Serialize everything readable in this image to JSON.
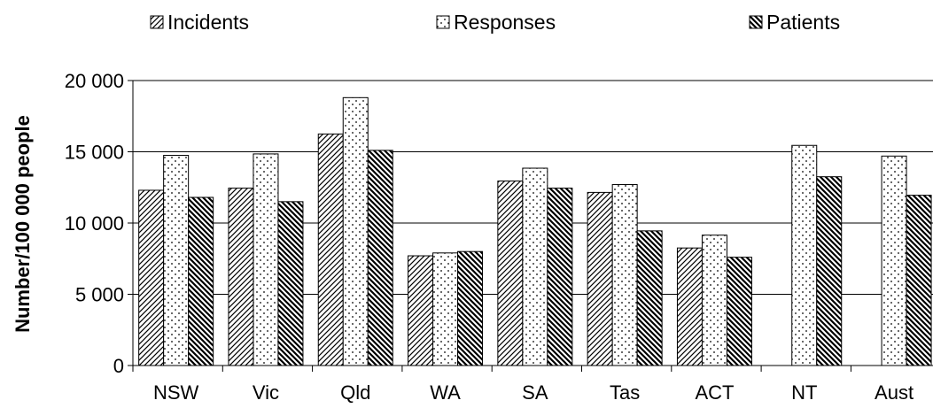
{
  "chart_data": {
    "type": "bar",
    "title": "",
    "xlabel": "",
    "ylabel": "Number/100 000 people",
    "ylim": [
      0,
      20000
    ],
    "yticks": [
      {
        "value": 0,
        "label": "0"
      },
      {
        "value": 5000,
        "label": "5 000"
      },
      {
        "value": 10000,
        "label": "10 000"
      },
      {
        "value": 15000,
        "label": "15 000"
      },
      {
        "value": 20000,
        "label": "20 000"
      }
    ],
    "grid": true,
    "legend": "top",
    "categories": [
      "NSW",
      "Vic",
      "Qld",
      "WA",
      "SA",
      "Tas",
      "ACT",
      "NT",
      "Aust"
    ],
    "series": [
      {
        "name": "Incidents",
        "pattern": "diagonal-fine",
        "values": [
          12300,
          12450,
          16250,
          7700,
          12950,
          12150,
          8250,
          null,
          null
        ]
      },
      {
        "name": "Responses",
        "pattern": "dots",
        "values": [
          14750,
          14850,
          18800,
          7900,
          13850,
          12700,
          9150,
          15450,
          14700
        ]
      },
      {
        "name": "Patients",
        "pattern": "diagonal-bold",
        "values": [
          11800,
          11500,
          15100,
          8000,
          12450,
          9450,
          7600,
          13250,
          11950
        ]
      }
    ]
  }
}
